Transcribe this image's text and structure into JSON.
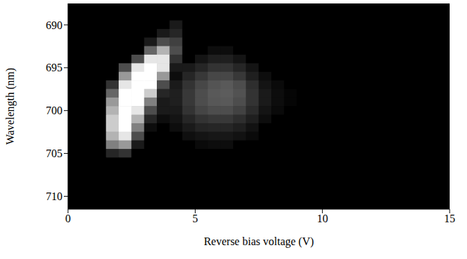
{
  "chart_data": {
    "type": "heatmap",
    "x_label": "Reverse bias voltage (V)",
    "y_label": "Wavelength (nm)",
    "x": [
      0.25,
      0.75,
      1.25,
      1.75,
      2.25,
      2.75,
      3.25,
      3.75,
      4.25,
      4.75,
      5.25,
      5.75,
      6.25,
      6.75,
      7.25,
      7.75,
      8.25,
      8.75,
      9.25,
      9.75,
      10.25,
      10.75,
      11.25,
      11.75,
      12.25,
      12.75,
      13.25,
      13.75,
      14.25,
      14.75
    ],
    "y": [
      688,
      689,
      690,
      691,
      692,
      693,
      694,
      695,
      696,
      697,
      698,
      699,
      700,
      701,
      702,
      703,
      704,
      705,
      706,
      707,
      708,
      709,
      710,
      711
    ],
    "values": [
      [
        0,
        0,
        0,
        0,
        0,
        0,
        0,
        0,
        0,
        0,
        0,
        0,
        0,
        0,
        0,
        0,
        0,
        0,
        0,
        0,
        0,
        0,
        0,
        0,
        0,
        0,
        0,
        0,
        0,
        0
      ],
      [
        0,
        0,
        0,
        0,
        0,
        0,
        0,
        0,
        0,
        0,
        0,
        0,
        0,
        0,
        0,
        0,
        0,
        0,
        0,
        0,
        0,
        0,
        0,
        0,
        0,
        0,
        0,
        0,
        0,
        0
      ],
      [
        0,
        0,
        0,
        0,
        0,
        0,
        0,
        0,
        0.1,
        0,
        0,
        0,
        0,
        0,
        0,
        0,
        0,
        0,
        0,
        0,
        0,
        0,
        0,
        0,
        0,
        0,
        0,
        0,
        0,
        0
      ],
      [
        0,
        0,
        0,
        0,
        0,
        0,
        0,
        0.1,
        0.15,
        0,
        0,
        0,
        0,
        0,
        0,
        0,
        0,
        0,
        0,
        0,
        0,
        0,
        0,
        0,
        0,
        0,
        0,
        0,
        0,
        0
      ],
      [
        0,
        0,
        0,
        0,
        0,
        0,
        0.1,
        0.3,
        0.25,
        0,
        0,
        0,
        0,
        0,
        0,
        0,
        0,
        0,
        0,
        0,
        0,
        0,
        0,
        0,
        0,
        0,
        0,
        0,
        0,
        0
      ],
      [
        0,
        0,
        0,
        0,
        0,
        0,
        0.4,
        0.7,
        0.3,
        0,
        0,
        0.05,
        0.05,
        0,
        0,
        0,
        0,
        0,
        0,
        0,
        0,
        0,
        0,
        0,
        0,
        0,
        0,
        0,
        0,
        0
      ],
      [
        0,
        0,
        0,
        0,
        0,
        0.3,
        0.9,
        0.9,
        0.2,
        0,
        0.08,
        0.12,
        0.12,
        0.08,
        0,
        0,
        0,
        0,
        0,
        0,
        0,
        0,
        0,
        0,
        0,
        0,
        0,
        0,
        0,
        0
      ],
      [
        0,
        0,
        0,
        0,
        0.3,
        0.9,
        1,
        0.9,
        0.1,
        0.1,
        0.15,
        0.2,
        0.2,
        0.15,
        0.08,
        0,
        0,
        0,
        0,
        0,
        0,
        0,
        0,
        0,
        0,
        0,
        0,
        0,
        0,
        0
      ],
      [
        0,
        0,
        0,
        0,
        0.6,
        1,
        1,
        0.6,
        0.05,
        0.15,
        0.22,
        0.28,
        0.28,
        0.22,
        0.12,
        0.05,
        0,
        0,
        0,
        0,
        0,
        0,
        0,
        0,
        0,
        0,
        0,
        0,
        0,
        0
      ],
      [
        0,
        0,
        0,
        0.2,
        0.9,
        1,
        1,
        0.3,
        0.1,
        0.2,
        0.28,
        0.33,
        0.35,
        0.3,
        0.18,
        0.08,
        0.04,
        0,
        0,
        0,
        0,
        0,
        0,
        0,
        0,
        0,
        0,
        0,
        0,
        0
      ],
      [
        0,
        0,
        0,
        0.4,
        1,
        1,
        0.8,
        0.15,
        0.12,
        0.22,
        0.3,
        0.35,
        0.36,
        0.32,
        0.2,
        0.1,
        0.05,
        0.02,
        0,
        0,
        0,
        0,
        0,
        0,
        0,
        0,
        0,
        0,
        0,
        0
      ],
      [
        0,
        0,
        0,
        0.6,
        1,
        1,
        0.5,
        0.1,
        0.12,
        0.22,
        0.3,
        0.34,
        0.35,
        0.3,
        0.2,
        0.1,
        0.05,
        0.02,
        0,
        0,
        0,
        0,
        0,
        0,
        0,
        0,
        0,
        0,
        0,
        0
      ],
      [
        0,
        0,
        0,
        0.7,
        1,
        0.9,
        0.3,
        0.1,
        0.1,
        0.2,
        0.27,
        0.3,
        0.3,
        0.26,
        0.17,
        0.08,
        0.04,
        0,
        0,
        0,
        0,
        0,
        0,
        0,
        0,
        0,
        0,
        0,
        0,
        0
      ],
      [
        0,
        0,
        0,
        0.8,
        1,
        0.7,
        0.15,
        0.05,
        0.08,
        0.15,
        0.2,
        0.22,
        0.22,
        0.18,
        0.12,
        0.05,
        0,
        0,
        0,
        0,
        0,
        0,
        0,
        0,
        0,
        0,
        0,
        0,
        0,
        0
      ],
      [
        0,
        0,
        0,
        0.8,
        1,
        0.5,
        0.05,
        0,
        0.05,
        0.1,
        0.14,
        0.15,
        0.15,
        0.12,
        0.07,
        0,
        0,
        0,
        0,
        0,
        0,
        0,
        0,
        0,
        0,
        0,
        0,
        0,
        0,
        0
      ],
      [
        0,
        0,
        0,
        0.7,
        0.9,
        0.3,
        0,
        0,
        0,
        0.06,
        0.08,
        0.09,
        0.09,
        0.07,
        0.04,
        0,
        0,
        0,
        0,
        0,
        0,
        0,
        0,
        0,
        0,
        0,
        0,
        0,
        0,
        0
      ],
      [
        0,
        0,
        0,
        0.5,
        0.6,
        0.1,
        0,
        0,
        0,
        0,
        0.04,
        0.05,
        0.05,
        0,
        0,
        0,
        0,
        0,
        0,
        0,
        0,
        0,
        0,
        0,
        0,
        0,
        0,
        0,
        0,
        0
      ],
      [
        0,
        0,
        0,
        0.15,
        0.2,
        0,
        0,
        0,
        0,
        0,
        0,
        0,
        0,
        0,
        0,
        0,
        0,
        0,
        0,
        0,
        0,
        0,
        0,
        0,
        0,
        0,
        0,
        0,
        0,
        0
      ],
      [
        0,
        0,
        0,
        0,
        0,
        0,
        0,
        0,
        0,
        0,
        0,
        0,
        0,
        0,
        0,
        0,
        0,
        0,
        0,
        0,
        0,
        0,
        0,
        0,
        0,
        0,
        0,
        0,
        0,
        0
      ],
      [
        0,
        0,
        0,
        0,
        0,
        0,
        0,
        0,
        0,
        0,
        0,
        0,
        0,
        0,
        0,
        0,
        0,
        0,
        0,
        0,
        0,
        0,
        0,
        0,
        0,
        0,
        0,
        0,
        0,
        0
      ],
      [
        0,
        0,
        0,
        0,
        0,
        0,
        0,
        0,
        0,
        0,
        0,
        0,
        0,
        0,
        0,
        0,
        0,
        0,
        0,
        0,
        0,
        0,
        0,
        0,
        0,
        0,
        0,
        0,
        0,
        0
      ],
      [
        0,
        0,
        0,
        0,
        0,
        0,
        0,
        0,
        0,
        0,
        0,
        0,
        0,
        0,
        0,
        0,
        0,
        0,
        0,
        0,
        0,
        0,
        0,
        0,
        0,
        0,
        0,
        0,
        0,
        0
      ],
      [
        0,
        0,
        0,
        0,
        0,
        0,
        0,
        0,
        0,
        0,
        0,
        0,
        0,
        0,
        0,
        0,
        0,
        0,
        0,
        0,
        0,
        0,
        0,
        0,
        0,
        0,
        0,
        0,
        0,
        0
      ],
      [
        0,
        0,
        0,
        0,
        0,
        0,
        0,
        0,
        0,
        0,
        0,
        0,
        0,
        0,
        0,
        0,
        0,
        0,
        0,
        0,
        0,
        0,
        0,
        0,
        0,
        0,
        0,
        0,
        0,
        0
      ]
    ],
    "zlim": [
      0,
      1
    ],
    "xlim": [
      0,
      15
    ],
    "ylim": [
      687.5,
      711.5
    ],
    "xticks": [
      0,
      5,
      10,
      15
    ],
    "yticks": [
      690,
      695,
      700,
      705,
      710
    ],
    "grid": false
  }
}
